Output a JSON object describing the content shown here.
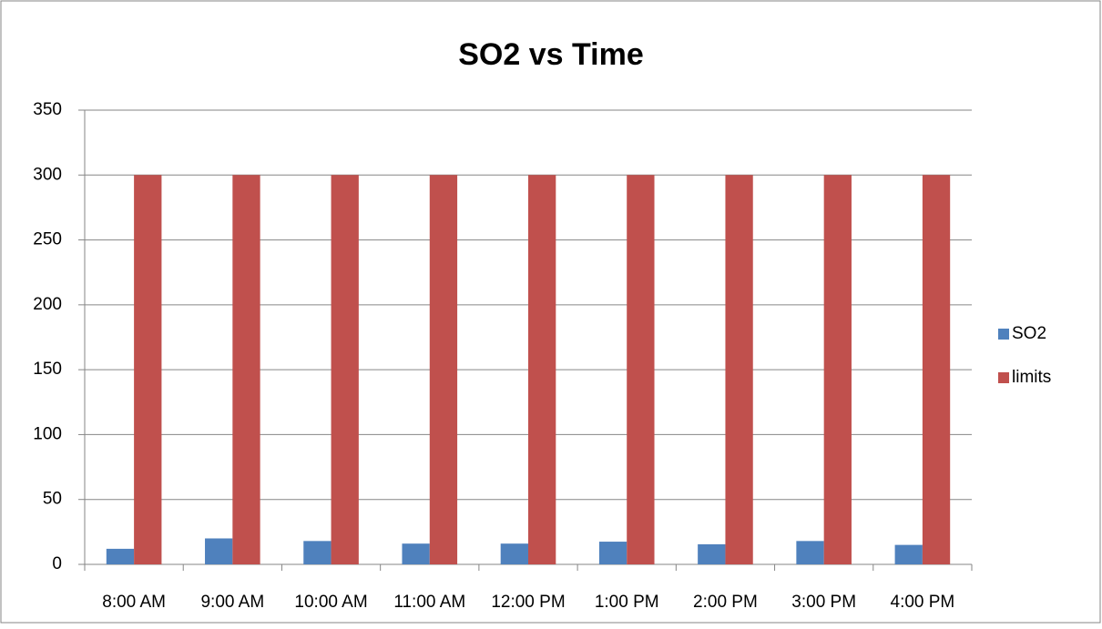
{
  "chart_data": {
    "type": "bar",
    "title": "SO2 vs Time",
    "categories": [
      "8:00 AM",
      "9:00 AM",
      "10:00 AM",
      "11:00 AM",
      "12:00 PM",
      "1:00 PM",
      "2:00 PM",
      "3:00 PM",
      "4:00 PM"
    ],
    "series": [
      {
        "name": "SO2",
        "color": "#4f81bd",
        "values": [
          12,
          20,
          18,
          16,
          16,
          17.5,
          15.5,
          18,
          15
        ]
      },
      {
        "name": "limits",
        "color": "#c0504d",
        "values": [
          300,
          300,
          300,
          300,
          300,
          300,
          300,
          300,
          300
        ]
      }
    ],
    "ylim": [
      0,
      350
    ],
    "yticks": [
      0,
      50,
      100,
      150,
      200,
      250,
      300,
      350
    ],
    "grid": true,
    "legend": "right"
  }
}
